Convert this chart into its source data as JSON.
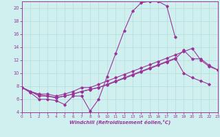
{
  "xlabel": "Windchill (Refroidissement éolien,°C)",
  "background_color": "#cff0ee",
  "grid_color": "#b8e0de",
  "line_color": "#993399",
  "x_values": [
    0,
    1,
    2,
    3,
    4,
    5,
    6,
    7,
    8,
    9,
    10,
    11,
    12,
    13,
    14,
    15,
    16,
    17,
    18,
    19,
    20,
    21,
    22,
    23
  ],
  "series1": [
    7.8,
    7.0,
    6.0,
    6.0,
    5.8,
    5.2,
    6.5,
    6.5,
    4.2,
    6.0,
    9.5,
    13.0,
    16.5,
    19.5,
    20.8,
    21.0,
    21.0,
    20.3,
    15.5,
    null,
    null,
    null,
    null,
    null
  ],
  "series2": [
    7.8,
    7.2,
    6.8,
    6.8,
    6.5,
    6.8,
    7.2,
    7.8,
    7.8,
    8.3,
    8.8,
    9.3,
    9.8,
    10.3,
    10.8,
    11.3,
    11.8,
    12.3,
    12.8,
    13.3,
    13.8,
    12.0,
    11.0,
    10.5
  ],
  "series3": [
    7.8,
    7.2,
    6.7,
    6.5,
    6.3,
    6.5,
    6.8,
    7.2,
    7.5,
    7.8,
    8.3,
    8.8,
    9.3,
    9.8,
    10.3,
    10.8,
    11.3,
    11.8,
    12.3,
    10.0,
    9.3,
    8.8,
    8.3,
    null
  ],
  "series4": [
    7.8,
    7.2,
    6.5,
    6.5,
    6.2,
    6.5,
    6.8,
    7.2,
    7.5,
    7.8,
    8.2,
    8.7,
    9.2,
    9.7,
    10.2,
    10.7,
    11.2,
    11.7,
    12.2,
    13.5,
    12.2,
    12.2,
    11.2,
    10.5
  ],
  "xlim": [
    0,
    23
  ],
  "ylim": [
    4,
    21
  ],
  "yticks": [
    4,
    6,
    8,
    10,
    12,
    14,
    16,
    18,
    20
  ],
  "xticks": [
    0,
    1,
    2,
    3,
    4,
    5,
    6,
    7,
    8,
    9,
    10,
    11,
    12,
    13,
    14,
    15,
    16,
    17,
    18,
    19,
    20,
    21,
    22,
    23
  ]
}
